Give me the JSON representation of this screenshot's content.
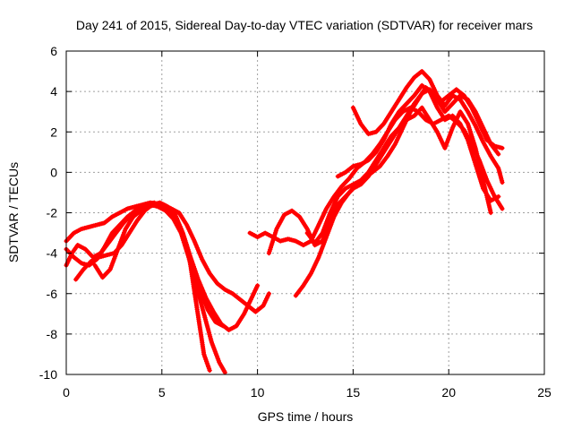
{
  "chart_data": {
    "type": "line",
    "title": "Day 241 of 2015, Sidereal Day-to-day VTEC variation (SDTVAR) for receiver mars",
    "xlabel": "GPS time / hours",
    "ylabel": "SDTVAR / TECUs",
    "xlim": [
      0,
      25
    ],
    "ylim": [
      -10,
      6
    ],
    "xticks": [
      0,
      5,
      10,
      15,
      20,
      25
    ],
    "yticks": [
      -10,
      -8,
      -6,
      -4,
      -2,
      0,
      2,
      4,
      6
    ],
    "grid": true,
    "color": "#ff0000",
    "marker": "plus",
    "series": [
      {
        "x": [
          0.0,
          0.4,
          0.8,
          1.2,
          1.6,
          2.0,
          2.4,
          2.8,
          3.2,
          3.6,
          4.0,
          4.4,
          4.8,
          5.2,
          5.6,
          6.0,
          6.4,
          6.8,
          7.2,
          7.5
        ],
        "y": [
          -3.4,
          -3.0,
          -2.8,
          -2.7,
          -2.6,
          -2.5,
          -2.2,
          -2.0,
          -1.8,
          -1.7,
          -1.6,
          -1.5,
          -1.6,
          -1.8,
          -2.1,
          -2.8,
          -4.0,
          -6.5,
          -9.0,
          -9.8
        ]
      },
      {
        "x": [
          0.0,
          0.4,
          0.8,
          1.2,
          1.6,
          2.0,
          2.4,
          2.8,
          3.2,
          3.6,
          4.0,
          4.4,
          4.8,
          5.2,
          5.6,
          6.0,
          6.4,
          6.8,
          7.2,
          7.6,
          8.0,
          8.3
        ],
        "y": [
          -3.8,
          -4.2,
          -4.5,
          -4.6,
          -4.3,
          -3.7,
          -3.0,
          -2.6,
          -2.2,
          -1.9,
          -1.7,
          -1.6,
          -1.7,
          -1.9,
          -2.3,
          -3.0,
          -4.2,
          -5.6,
          -7.0,
          -8.4,
          -9.4,
          -9.9
        ]
      },
      {
        "x": [
          0.0,
          0.3,
          0.6,
          1.0,
          1.4,
          1.8,
          2.2,
          2.6,
          3.0,
          3.4,
          3.8,
          4.2,
          4.6,
          5.0,
          5.4,
          5.8,
          6.2,
          6.6,
          7.0,
          7.4,
          7.8,
          8.2
        ],
        "y": [
          -4.6,
          -4.0,
          -3.6,
          -3.8,
          -4.2,
          -4.0,
          -3.5,
          -3.0,
          -2.5,
          -2.1,
          -1.8,
          -1.6,
          -1.5,
          -1.7,
          -2.0,
          -2.5,
          -3.4,
          -4.6,
          -5.8,
          -6.8,
          -7.4,
          -7.6
        ]
      },
      {
        "x": [
          0.5,
          0.9,
          1.3,
          1.7,
          2.1,
          2.5,
          2.9,
          3.3,
          3.7,
          4.1,
          4.5,
          4.9,
          5.3,
          5.7,
          6.1,
          6.5,
          6.9,
          7.3,
          7.7,
          8.1,
          8.5,
          8.9,
          9.3,
          9.7,
          10.0
        ],
        "y": [
          -5.3,
          -4.8,
          -4.4,
          -4.2,
          -4.1,
          -4.0,
          -3.6,
          -3.0,
          -2.4,
          -1.9,
          -1.6,
          -1.5,
          -1.7,
          -2.1,
          -3.0,
          -4.2,
          -5.3,
          -6.2,
          -6.9,
          -7.5,
          -7.8,
          -7.6,
          -7.0,
          -6.2,
          -5.6
        ]
      },
      {
        "x": [
          1.5,
          1.9,
          2.3,
          2.7,
          3.1,
          3.5,
          3.9,
          4.3,
          4.7,
          5.1,
          5.5,
          5.9,
          6.3,
          6.7,
          7.1,
          7.5,
          7.9,
          8.3,
          8.7,
          9.1,
          9.5,
          9.9,
          10.3,
          10.6
        ],
        "y": [
          -4.6,
          -5.2,
          -4.8,
          -3.8,
          -2.8,
          -2.2,
          -1.9,
          -1.7,
          -1.6,
          -1.6,
          -1.8,
          -2.0,
          -2.6,
          -3.4,
          -4.3,
          -5.0,
          -5.5,
          -5.8,
          -6.0,
          -6.3,
          -6.6,
          -6.9,
          -6.6,
          -6.0
        ]
      },
      {
        "x": [
          9.6,
          10.0,
          10.4,
          10.8,
          11.2,
          11.6,
          12.0,
          12.4,
          12.8,
          13.2,
          13.6,
          14.0,
          14.4,
          14.8,
          15.2,
          15.6,
          16.0,
          16.4,
          16.8,
          17.2,
          17.6,
          18.0,
          18.4,
          18.8,
          19.2,
          19.6,
          20.0,
          20.4,
          20.8,
          21.2,
          21.6,
          22.0,
          22.4,
          22.8
        ],
        "y": [
          -3.0,
          -3.2,
          -3.0,
          -3.2,
          -3.4,
          -3.3,
          -3.4,
          -3.6,
          -3.4,
          -2.6,
          -1.8,
          -1.2,
          -0.7,
          -0.3,
          0.2,
          0.5,
          0.9,
          1.4,
          2.0,
          2.6,
          3.0,
          3.2,
          3.0,
          2.6,
          2.4,
          2.6,
          2.8,
          2.5,
          2.1,
          1.4,
          0.6,
          -0.4,
          -1.2,
          -1.8
        ]
      },
      {
        "x": [
          10.6,
          11.0,
          11.4,
          11.8,
          12.2,
          12.6,
          13.0,
          13.4,
          13.8,
          14.2,
          14.6,
          15.0,
          15.4,
          15.8,
          16.2,
          16.6,
          17.0,
          17.4,
          17.8,
          18.2,
          18.6,
          19.0,
          19.4,
          19.8,
          20.2,
          20.6,
          21.0,
          21.4,
          21.8,
          22.2,
          22.6
        ],
        "y": [
          -4.0,
          -2.8,
          -2.1,
          -1.9,
          -2.2,
          -2.8,
          -3.6,
          -3.4,
          -2.4,
          -1.6,
          -1.2,
          -0.8,
          -0.6,
          -0.2,
          0.4,
          1.0,
          1.6,
          2.2,
          2.8,
          3.4,
          3.9,
          4.1,
          3.6,
          3.0,
          3.4,
          3.8,
          3.6,
          3.0,
          2.2,
          1.4,
          0.9
        ]
      },
      {
        "x": [
          12.0,
          12.4,
          12.8,
          13.2,
          13.6,
          14.0,
          14.4,
          14.8,
          15.2,
          15.6,
          16.0,
          16.4,
          16.8,
          17.2,
          17.6,
          18.0,
          18.4,
          18.8,
          19.2,
          19.6,
          20.0,
          20.4,
          20.8,
          21.2,
          21.6,
          22.0,
          22.4,
          22.8
        ],
        "y": [
          -6.1,
          -5.6,
          -5.0,
          -4.2,
          -3.2,
          -2.2,
          -1.5,
          -1.0,
          -0.6,
          -0.3,
          0.0,
          0.3,
          0.8,
          1.4,
          2.2,
          3.0,
          3.6,
          4.2,
          3.9,
          3.5,
          3.8,
          4.1,
          3.8,
          3.2,
          2.4,
          1.6,
          1.3,
          1.2
        ]
      },
      {
        "x": [
          15.0,
          15.4,
          15.8,
          16.2,
          16.6,
          17.0,
          17.4,
          17.8,
          18.2,
          18.6,
          19.0,
          19.4,
          19.8,
          20.2,
          20.6,
          21.0,
          21.4,
          21.8,
          22.2,
          22.6,
          22.8
        ],
        "y": [
          3.2,
          2.4,
          1.9,
          2.0,
          2.4,
          3.0,
          3.6,
          4.2,
          4.7,
          5.0,
          4.6,
          3.8,
          3.3,
          3.8,
          3.6,
          3.0,
          2.3,
          1.5,
          0.8,
          0.2,
          -0.5
        ]
      },
      {
        "x": [
          14.2,
          14.6,
          15.0,
          15.4,
          15.8,
          16.2,
          16.6,
          17.0,
          17.4,
          17.8,
          18.2,
          18.6,
          19.0,
          19.4,
          19.8,
          20.2,
          20.6,
          21.0,
          21.4,
          21.8,
          22.2,
          22.6
        ],
        "y": [
          -0.2,
          0.0,
          0.3,
          0.4,
          0.6,
          1.0,
          1.6,
          2.4,
          3.0,
          3.4,
          3.8,
          4.3,
          4.0,
          3.2,
          2.6,
          2.8,
          2.4,
          1.6,
          0.4,
          -0.8,
          -1.4,
          -1.2
        ]
      },
      {
        "x": [
          12.6,
          13.0,
          13.4,
          13.8,
          14.2,
          14.6,
          15.0,
          15.4,
          15.8,
          16.2,
          16.6,
          17.0,
          17.4,
          17.8,
          18.2,
          18.6,
          19.0,
          19.4,
          19.8,
          20.2,
          20.6,
          21.0,
          21.4,
          21.8,
          22.2
        ],
        "y": [
          -3.0,
          -3.5,
          -3.0,
          -2.0,
          -1.2,
          -0.8,
          -0.6,
          -0.4,
          0.0,
          0.6,
          1.2,
          1.8,
          2.2,
          2.6,
          2.8,
          3.2,
          2.6,
          2.0,
          1.2,
          2.2,
          3.0,
          2.4,
          1.2,
          -0.4,
          -2.0
        ]
      }
    ]
  }
}
